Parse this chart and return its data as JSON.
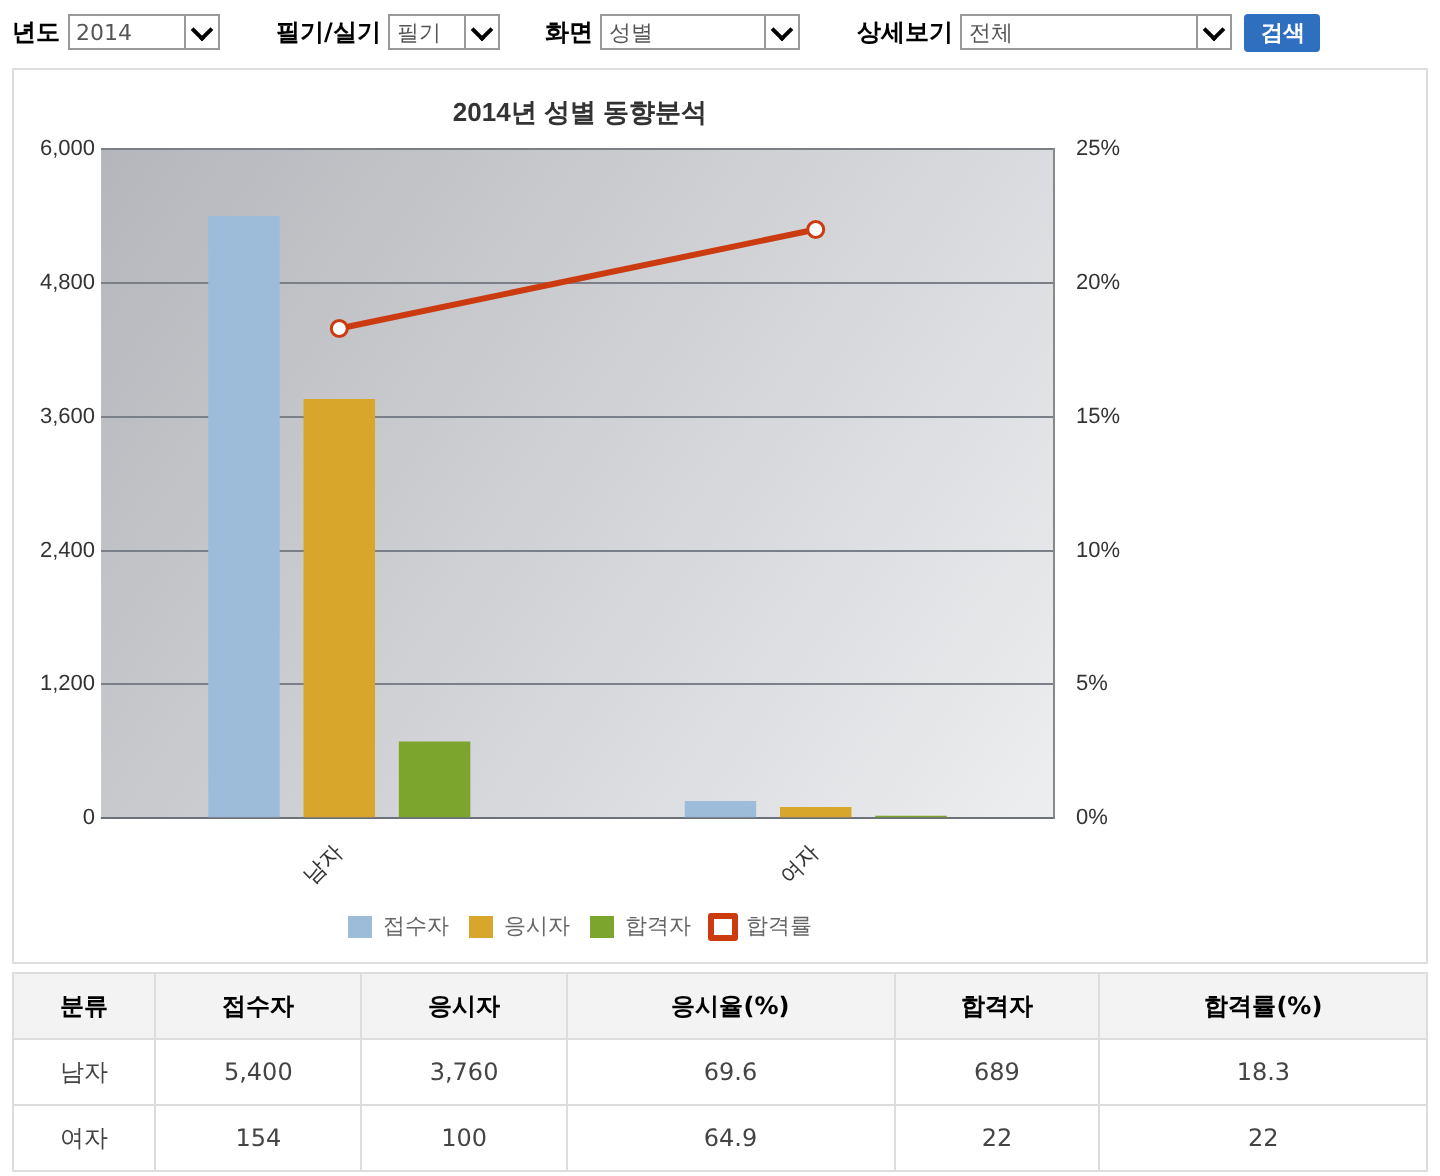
{
  "chart_data": [
    {
      "type": "bar",
      "title": "2014년 성별 동향분석",
      "categories": [
        "남자",
        "여자"
      ],
      "series": [
        {
          "name": "접수자",
          "color": "#9dbcd9",
          "values": [
            5400,
            154
          ]
        },
        {
          "name": "응시자",
          "color": "#d8a62a",
          "values": [
            3760,
            100
          ]
        },
        {
          "name": "합격자",
          "color": "#7ba52c",
          "values": [
            689,
            22
          ]
        },
        {
          "name": "합격률",
          "type": "line",
          "axis": "y2",
          "color": "#cc3a10",
          "values": [
            18.3,
            22
          ]
        }
      ],
      "ylim": [
        0,
        6000
      ],
      "yticks": [
        0,
        {
          "value": 1200,
          "label": "1,200"
        },
        {
          "value": 2400,
          "label": "2,400"
        },
        {
          "value": 3600,
          "label": "3,600"
        },
        {
          "value": 4800,
          "label": "4,800"
        },
        {
          "value": 6000,
          "label": "6,000"
        }
      ],
      "y2lim": [
        0,
        25
      ],
      "y2ticks": [
        {
          "value": 0,
          "label": "0%"
        },
        {
          "value": 5,
          "label": "5%"
        },
        {
          "value": 10,
          "label": "10%"
        },
        {
          "value": 15,
          "label": "15%"
        },
        {
          "value": 20,
          "label": "20%"
        },
        {
          "value": 25,
          "label": "25%"
        }
      ],
      "grid": "y",
      "legend": "bottom",
      "marker": "circle",
      "annotations": [
        "년도",
        "2014",
        "필기/실기",
        "필기",
        "화면",
        "성별",
        "상세보기",
        "전체",
        "검색"
      ]
    },
    {
      "type": "other",
      "categories": [
        "남자",
        "여자"
      ],
      "series": [
        {
          "name": "접수자",
          "values": [
            5400,
            154
          ],
          "value_labels": [
            "5,400",
            "154"
          ]
        },
        {
          "name": "응시자",
          "values": [
            3760,
            100
          ],
          "value_labels": [
            "3,760",
            "100"
          ]
        },
        {
          "name": "응시율(%)",
          "values": [
            69.6,
            64.9
          ]
        },
        {
          "name": "합격자",
          "values": [
            689,
            22
          ]
        },
        {
          "name": "합격률(%)",
          "values": [
            18.3,
            22
          ]
        }
      ],
      "data_labels": true,
      "annotations": [
        "분류"
      ]
    }
  ]
}
